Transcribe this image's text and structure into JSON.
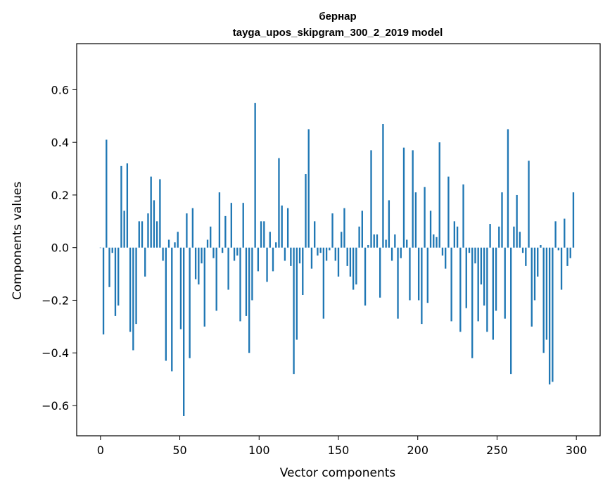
{
  "chart_data": {
    "type": "bar",
    "title": "бернар",
    "subtitle": "tayga_upos_skipgram_300_2_2019 model",
    "xlabel": "Vector components",
    "ylabel": "Components values",
    "xlim": [
      -15,
      315
    ],
    "ylim": [
      -0.715,
      0.775
    ],
    "xticks": [
      0,
      50,
      100,
      150,
      200,
      250,
      300
    ],
    "xtick_labels": [
      "0",
      "50",
      "100",
      "150",
      "200",
      "250",
      "300"
    ],
    "yticks": [
      -0.6,
      -0.4,
      -0.2,
      0.0,
      0.2,
      0.4,
      0.6
    ],
    "ytick_labels": [
      "−0.6",
      "−0.4",
      "−0.2",
      "0.0",
      "0.2",
      "0.4",
      "0.6"
    ],
    "grid": false,
    "bar_color": "#1f77b4",
    "series": [
      {
        "values": [
          0.0,
          -0.33,
          0.41,
          -0.15,
          -0.02,
          -0.26,
          -0.22,
          0.31,
          0.14,
          0.32,
          -0.32,
          -0.39,
          -0.29,
          0.1,
          0.1,
          -0.11,
          0.13,
          0.27,
          0.18,
          0.1,
          0.26,
          -0.05,
          -0.43,
          0.03,
          -0.47,
          0.02,
          0.06,
          -0.31,
          -0.64,
          0.13,
          -0.42,
          0.15,
          -0.12,
          -0.14,
          -0.06,
          -0.3,
          0.03,
          0.08,
          -0.04,
          -0.24,
          0.21,
          -0.02,
          0.12,
          -0.16,
          0.17,
          -0.05,
          -0.03,
          -0.28,
          0.17,
          -0.26,
          -0.4,
          -0.2,
          0.55,
          -0.09,
          0.1,
          0.1,
          -0.13,
          0.06,
          -0.09,
          0.02,
          0.34,
          0.16,
          -0.05,
          0.15,
          -0.07,
          -0.48,
          -0.35,
          -0.06,
          -0.18,
          0.28,
          0.45,
          -0.08,
          0.1,
          -0.03,
          -0.02,
          -0.27,
          -0.05,
          -0.01,
          0.13,
          -0.05,
          -0.11,
          0.06,
          0.15,
          -0.07,
          -0.11,
          -0.16,
          -0.14,
          0.08,
          0.14,
          -0.22,
          0.01,
          0.37,
          0.05,
          0.05,
          -0.19,
          0.47,
          0.03,
          0.18,
          -0.05,
          0.05,
          -0.27,
          -0.04,
          0.38,
          0.03,
          -0.2,
          0.37,
          0.21,
          -0.2,
          -0.29,
          0.23,
          -0.21,
          0.14,
          0.05,
          0.04,
          0.4,
          -0.03,
          -0.08,
          0.27,
          -0.28,
          0.1,
          0.08,
          -0.32,
          0.24,
          -0.23,
          -0.02,
          -0.42,
          -0.06,
          -0.28,
          -0.14,
          -0.22,
          -0.32,
          0.09,
          -0.35,
          -0.24,
          0.08,
          0.21,
          -0.27,
          0.45,
          -0.48,
          0.08,
          0.2,
          0.06,
          -0.02,
          -0.07,
          0.33,
          -0.3,
          -0.2,
          -0.11,
          0.01,
          -0.4,
          -0.35,
          -0.52,
          -0.51,
          0.1,
          -0.01,
          -0.16,
          0.11,
          -0.07,
          -0.04,
          0.21
        ]
      }
    ]
  }
}
